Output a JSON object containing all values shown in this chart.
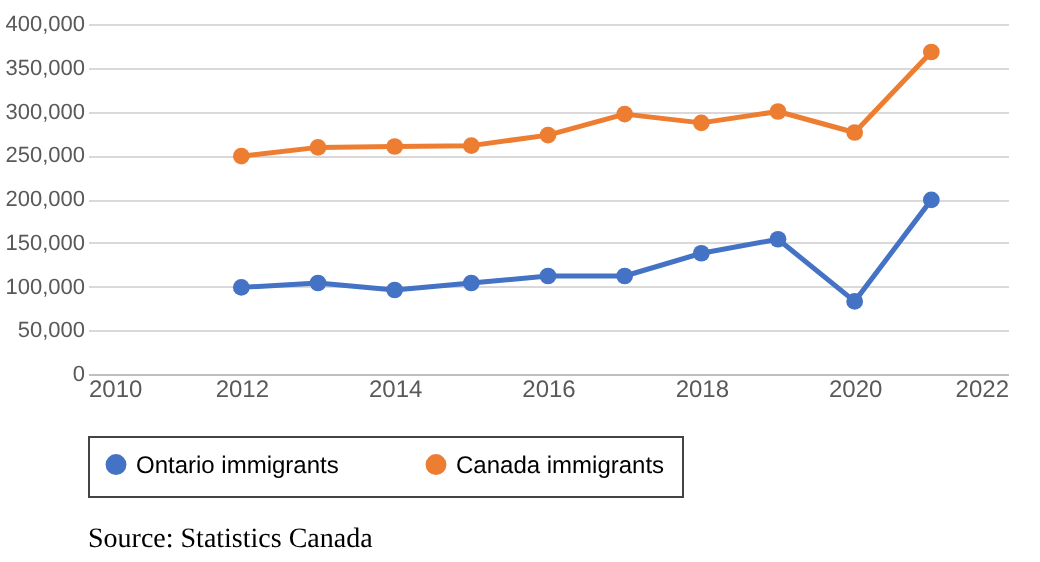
{
  "chart_data": {
    "type": "line",
    "x": [
      2012,
      2013,
      2014,
      2015,
      2016,
      2017,
      2018,
      2019,
      2020,
      2021
    ],
    "series": [
      {
        "name": "Ontario immigrants",
        "color": "#4472c4",
        "values": [
          99000,
          104000,
          96000,
          104000,
          112000,
          112000,
          138000,
          154000,
          83000,
          199000
        ]
      },
      {
        "name": "Canada immigrants",
        "color": "#ed7d31",
        "values": [
          249000,
          259000,
          260000,
          261000,
          273000,
          297000,
          287000,
          300000,
          276000,
          368000
        ]
      }
    ],
    "xlim": [
      2010,
      2022
    ],
    "xticks": [
      2010,
      2012,
      2014,
      2016,
      2018,
      2020,
      2022
    ],
    "ylim": [
      0,
      400000
    ],
    "yticks": [
      {
        "value": 0,
        "label": "0"
      },
      {
        "value": 50000,
        "label": "50,000"
      },
      {
        "value": 100000,
        "label": "100,000"
      },
      {
        "value": 150000,
        "label": "150,000"
      },
      {
        "value": 200000,
        "label": "200,000"
      },
      {
        "value": 250000,
        "label": "250,000"
      },
      {
        "value": 300000,
        "label": "300,000"
      },
      {
        "value": 350000,
        "label": "350,000"
      },
      {
        "value": 400000,
        "label": "400,000"
      }
    ],
    "grid": "y",
    "legend": "bottom",
    "marker": "circle",
    "line_style": "solid",
    "annotations": [
      "Source: Statistics Canada"
    ]
  }
}
